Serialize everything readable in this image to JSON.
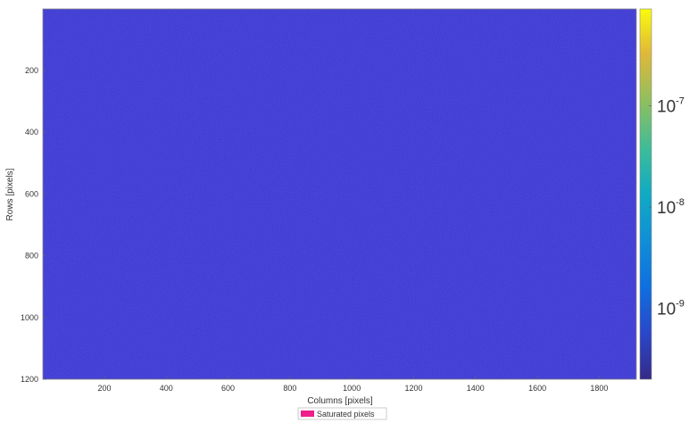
{
  "chart_data": {
    "type": "heatmap",
    "title": "",
    "xlabel": "Columns [pixels]",
    "ylabel": "Rows [pixels]",
    "xlim": [
      1,
      1920
    ],
    "ylim": [
      1,
      1200
    ],
    "y_reversed": true,
    "xticks": [
      200,
      400,
      600,
      800,
      1000,
      1200,
      1400,
      1600,
      1800
    ],
    "yticks": [
      200,
      400,
      600,
      800,
      1000,
      1200
    ],
    "colorbar": {
      "scale": "log",
      "colormap": "parula",
      "range": [
        2e-10,
        9e-07
      ],
      "ticks": [
        {
          "value": 1e-07,
          "base": "10",
          "exp": "-7"
        },
        {
          "value": 1e-08,
          "base": "10",
          "exp": "-8"
        },
        {
          "value": 1e-09,
          "base": "10",
          "exp": "-9"
        }
      ]
    },
    "field": {
      "description": "uniform low-level noise, approx 3e-10 to 6e-10 everywhere",
      "typical_value": 4e-10
    },
    "grid": false,
    "legend": {
      "placement": "bottom-center",
      "entries": [
        {
          "label": "Saturated pixels",
          "color": "#ee1e8a"
        }
      ]
    }
  },
  "colors": {
    "background": "#ffffff",
    "field_base": "#3b37d8",
    "saturated": "#ee1e8a"
  }
}
